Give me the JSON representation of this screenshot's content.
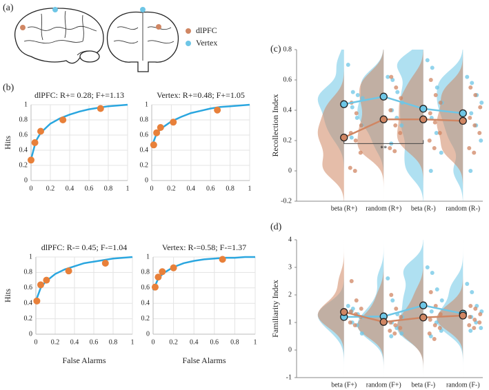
{
  "panel_labels": [
    "(a)",
    "(b)",
    "(c)",
    "(d)"
  ],
  "chart_data": [
    {
      "type": "scatter",
      "title": "dlPFC: R+= 0.28; F+=1.13",
      "ylabel": "Hits",
      "points": {
        "color": "#e8803a",
        "x": [
          0,
          0.04,
          0.1,
          0.33,
          0.72
        ],
        "y": [
          0.27,
          0.5,
          0.65,
          0.8,
          0.95
        ]
      },
      "curve": {
        "color": "#2aa6df",
        "x": [
          0,
          0.05,
          0.1,
          0.2,
          0.3,
          0.4,
          0.5,
          0.6,
          0.7,
          0.8,
          0.9,
          1
        ],
        "y": [
          0.28,
          0.52,
          0.63,
          0.75,
          0.82,
          0.87,
          0.91,
          0.94,
          0.96,
          0.98,
          0.99,
          1
        ]
      },
      "xlim": [
        0,
        1
      ],
      "ylim": [
        0,
        1
      ],
      "xticks": [
        0,
        0.2,
        0.4,
        0.6,
        0.8,
        1
      ],
      "yticks": [
        0,
        0.2,
        0.4,
        0.6,
        0.8,
        1
      ],
      "grid": true
    },
    {
      "type": "scatter",
      "title": "Vertex: R+=0.48; F+=1.05",
      "points": {
        "color": "#e8803a",
        "x": [
          0.02,
          0.05,
          0.09,
          0.22,
          0.67
        ],
        "y": [
          0.47,
          0.63,
          0.7,
          0.77,
          0.93
        ]
      },
      "curve": {
        "color": "#2aa6df",
        "x": [
          0,
          0.05,
          0.1,
          0.2,
          0.3,
          0.4,
          0.5,
          0.6,
          0.7,
          0.8,
          0.9,
          1
        ],
        "y": [
          0.45,
          0.62,
          0.69,
          0.78,
          0.84,
          0.89,
          0.92,
          0.95,
          0.97,
          0.98,
          0.99,
          1
        ]
      },
      "xlim": [
        0,
        1
      ],
      "ylim": [
        0,
        1
      ],
      "xticks": [
        0,
        0.2,
        0.4,
        0.6,
        0.8,
        1
      ],
      "yticks": [
        0,
        0.2,
        0.4,
        0.6,
        0.8,
        1
      ],
      "grid": true
    },
    {
      "type": "scatter",
      "title": "dlPFC: R-= 0.45; F-=1.04",
      "ylabel": "Hits",
      "xlabel": "False Alarms",
      "points": {
        "color": "#e8803a",
        "x": [
          0.01,
          0.05,
          0.11,
          0.34,
          0.72
        ],
        "y": [
          0.43,
          0.64,
          0.7,
          0.82,
          0.92
        ]
      },
      "curve": {
        "color": "#2aa6df",
        "x": [
          0,
          0.05,
          0.1,
          0.2,
          0.3,
          0.4,
          0.5,
          0.6,
          0.7,
          0.8,
          0.9,
          1
        ],
        "y": [
          0.43,
          0.6,
          0.68,
          0.78,
          0.84,
          0.88,
          0.92,
          0.94,
          0.96,
          0.98,
          0.99,
          1
        ]
      },
      "xlim": [
        0,
        1
      ],
      "ylim": [
        0,
        1
      ],
      "xticks": [
        0,
        0.2,
        0.4,
        0.6,
        0.8,
        1
      ],
      "yticks": [
        0,
        0.2,
        0.4,
        0.6,
        0.8,
        1
      ],
      "grid": true
    },
    {
      "type": "scatter",
      "title": "Vertex: R-=0.58; F-=1.37",
      "xlabel": "False Alarms",
      "points": {
        "color": "#e8803a",
        "x": [
          0.02,
          0.05,
          0.09,
          0.2,
          0.68
        ],
        "y": [
          0.61,
          0.74,
          0.81,
          0.86,
          0.97
        ]
      },
      "curve": {
        "color": "#2aa6df",
        "x": [
          0,
          0.05,
          0.1,
          0.2,
          0.3,
          0.4,
          0.5,
          0.6,
          0.7,
          0.8,
          0.9,
          1
        ],
        "y": [
          0.57,
          0.72,
          0.79,
          0.87,
          0.92,
          0.95,
          0.97,
          0.98,
          0.99,
          0.99,
          1,
          1
        ]
      },
      "xlim": [
        0,
        1
      ],
      "ylim": [
        0,
        1
      ],
      "xticks": [
        0,
        0.2,
        0.4,
        0.6,
        0.8,
        1
      ],
      "yticks": [
        0,
        0.2,
        0.4,
        0.6,
        0.8,
        1
      ],
      "grid": true
    },
    {
      "type": "raincloud",
      "ylabel": "Recollection Index",
      "categories": [
        "beta (R+)",
        "random (R+)",
        "beta (R-)",
        "random (R-)"
      ],
      "ylim": [
        -0.2,
        0.8
      ],
      "yticks": [
        -0.2,
        0,
        0.2,
        0.4,
        0.6,
        0.8
      ],
      "significance": "**",
      "series": [
        {
          "name": "Vertex",
          "color": "#6ec6e6",
          "means": [
            0.44,
            0.49,
            0.41,
            0.38
          ],
          "points": [
            [
              0.7,
              0.52,
              0.5,
              0.48,
              0.42,
              0.35,
              0.3,
              0.22
            ],
            [
              0.62,
              0.6,
              0.52,
              0.45,
              0.4,
              0.35,
              0.3,
              0.18
            ],
            [
              0.73,
              0.68,
              0.55,
              0.45,
              0.35,
              0.25,
              0.12,
              0
            ],
            [
              0.62,
              0.58,
              0.5,
              0.45,
              0.38,
              0.3,
              0.2,
              0
            ]
          ]
        },
        {
          "name": "dlPFC",
          "color": "#d08663",
          "means": [
            0.22,
            0.34,
            0.34,
            0.33
          ],
          "points": [
            [
              0.45,
              0.38,
              0.3,
              0.25,
              0.2,
              0.12,
              0.02,
              0
            ],
            [
              0.62,
              0.55,
              0.48,
              0.4,
              0.3,
              0.25,
              0.15,
              0.13
            ],
            [
              0.6,
              0.5,
              0.45,
              0.38,
              0.32,
              0.25,
              0.2,
              0.15
            ],
            [
              0.55,
              0.5,
              0.42,
              0.35,
              0.3,
              0.25,
              0.15,
              0.12
            ]
          ]
        }
      ]
    },
    {
      "type": "raincloud",
      "ylabel": "Familiarity Index",
      "categories": [
        "beta (F+)",
        "random (F+)",
        "beta (F-)",
        "random (F-)"
      ],
      "ylim": [
        -1,
        4
      ],
      "yticks": [
        -1,
        0,
        1,
        2,
        3,
        4
      ],
      "series": [
        {
          "name": "Vertex",
          "color": "#6ec6e6",
          "means": [
            1.2,
            1.22,
            1.62,
            1.32
          ],
          "points": [
            [
              1.6,
              1.5,
              1.3,
              1.2,
              1.0,
              0.9,
              0.6,
              1.4
            ],
            [
              2.6,
              1.8,
              1.3,
              1.2,
              1.0,
              0.8,
              0.6,
              0.5
            ],
            [
              3.0,
              2.8,
              2.2,
              1.8,
              1.4,
              1.0,
              0.7,
              0.5
            ],
            [
              2.4,
              2.1,
              1.6,
              1.4,
              1.2,
              1.0,
              0.8,
              0.7
            ]
          ]
        },
        {
          "name": "dlPFC",
          "color": "#d08663",
          "means": [
            1.38,
            1.02,
            1.18,
            1.25
          ],
          "points": [
            [
              2.5,
              1.8,
              1.5,
              1.4,
              1.3,
              1.2,
              1.0,
              0.9
            ],
            [
              2.0,
              1.5,
              1.2,
              1.0,
              0.9,
              0.8,
              0.7,
              0.6
            ],
            [
              2.1,
              1.6,
              1.3,
              1.1,
              0.9,
              0.8,
              0.6,
              0.4
            ],
            [
              1.6,
              1.5,
              1.3,
              1.2,
              1.1,
              1.0,
              0.9,
              0.8
            ]
          ]
        }
      ]
    }
  ]
}
